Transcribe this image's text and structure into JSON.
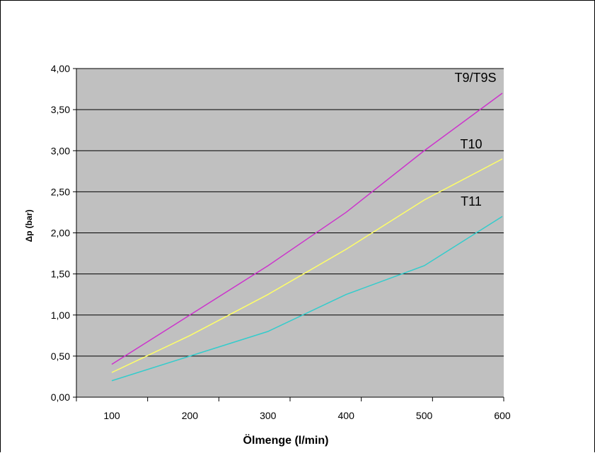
{
  "chart_data": {
    "type": "line",
    "title": "",
    "xlabel": "Ölmenge (l/min)",
    "ylabel": "Δp (bar)",
    "x": [
      100,
      200,
      300,
      400,
      500,
      600
    ],
    "x_tick_labels": [
      "100",
      "200",
      "300",
      "400",
      "500",
      "600"
    ],
    "ylim": [
      0,
      4
    ],
    "y_tick_labels": [
      "0,00",
      "0,50",
      "1,00",
      "1,50",
      "2,00",
      "2,50",
      "3,00",
      "3,50",
      "4,00"
    ],
    "grid": true,
    "plot_background": "#c0c0c0",
    "legend": "labels at line ends",
    "series": [
      {
        "name": "T9/T9S",
        "color": "#cc33cc",
        "values": [
          0.4,
          1.0,
          1.6,
          2.25,
          3.0,
          3.7
        ]
      },
      {
        "name": "T10",
        "color": "#ffff66",
        "values": [
          0.3,
          0.75,
          1.25,
          1.8,
          2.4,
          2.9
        ]
      },
      {
        "name": "T11",
        "color": "#33cccc",
        "values": [
          0.2,
          0.5,
          0.8,
          1.25,
          1.6,
          2.2
        ]
      }
    ]
  }
}
